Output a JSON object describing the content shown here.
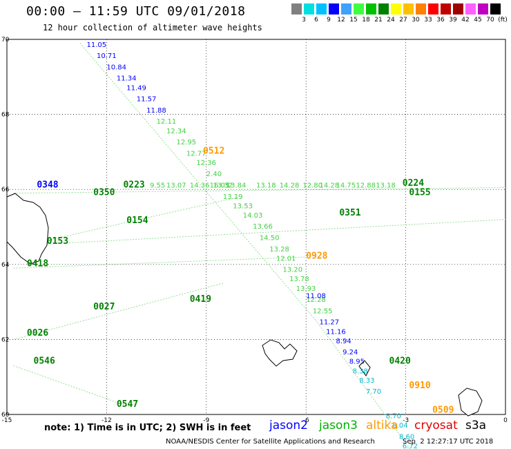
{
  "header": {
    "title": "00:00 – 11:59 UTC 09/01/2018",
    "subtitle": "12 hour collection of altimeter wave heights"
  },
  "color_scale": {
    "unit": "(ft)",
    "colors": [
      "#808080",
      "#00e0e0",
      "#00c0ff",
      "#0000ff",
      "#40a0ff",
      "#40ff40",
      "#00c000",
      "#008000",
      "#ffff00",
      "#ffc000",
      "#ff8000",
      "#ff0000",
      "#c00000",
      "#a00000",
      "#ff60ff",
      "#c000c0",
      "#000000"
    ],
    "labels": [
      "3",
      "6",
      "9",
      "12",
      "15",
      "18",
      "21",
      "24",
      "27",
      "30",
      "33",
      "36",
      "39",
      "42",
      "45",
      "70"
    ]
  },
  "axes": {
    "lon_ticks": [
      "-15",
      "-12",
      "-9",
      "-6",
      "-3",
      "0"
    ],
    "lat_ticks": [
      "70",
      "68",
      "66",
      "64",
      "62",
      "60"
    ]
  },
  "satellites": {
    "jason2": {
      "name": "jason2",
      "color": "#0000ff"
    },
    "jason3": {
      "name": "jason3",
      "color": "#00b000"
    },
    "altika": {
      "name": "altika",
      "color": "#ff9900"
    },
    "cryosat": {
      "name": "cryosat",
      "color": "#e00000"
    },
    "s3a": {
      "name": "s3a",
      "color": "#000000"
    }
  },
  "tracks": [
    {
      "sat": "jason2",
      "color": "#0000ff",
      "labels": [
        {
          "v": "11.05",
          "lon": -12.6,
          "lat": 69.8
        },
        {
          "v": "10.71",
          "lon": -12.3,
          "lat": 69.5
        },
        {
          "v": "10.84",
          "lon": -12.0,
          "lat": 69.2
        },
        {
          "v": "11.34",
          "lon": -11.7,
          "lat": 68.9
        },
        {
          "v": "11.49",
          "lon": -11.4,
          "lat": 68.65
        },
        {
          "v": "11.57",
          "lon": -11.1,
          "lat": 68.35
        },
        {
          "v": "11.88",
          "lon": -10.8,
          "lat": 68.05
        }
      ]
    },
    {
      "sat": "jason3",
      "color": "#40d040",
      "labels": [
        {
          "v": "12.11",
          "lon": -10.5,
          "lat": 67.75
        },
        {
          "v": "12.34",
          "lon": -10.2,
          "lat": 67.5
        },
        {
          "v": "12.95",
          "lon": -9.9,
          "lat": 67.2
        },
        {
          "v": "12.77",
          "lon": -9.6,
          "lat": 66.9
        },
        {
          "v": "12.36",
          "lon": -9.3,
          "lat": 66.65
        },
        {
          "v": "2.40",
          "lon": -9.0,
          "lat": 66.35
        },
        {
          "v": "13.32",
          "lon": -8.8,
          "lat": 66.05
        },
        {
          "v": "13.19",
          "lon": -8.5,
          "lat": 65.75
        },
        {
          "v": "13.53",
          "lon": -8.2,
          "lat": 65.5
        },
        {
          "v": "14.03",
          "lon": -7.9,
          "lat": 65.25
        },
        {
          "v": "13.66",
          "lon": -7.6,
          "lat": 64.95
        },
        {
          "v": "14.50",
          "lon": -7.4,
          "lat": 64.65
        },
        {
          "v": "13.28",
          "lon": -7.1,
          "lat": 64.35
        },
        {
          "v": "12.01",
          "lon": -6.9,
          "lat": 64.1
        },
        {
          "v": "13.20",
          "lon": -6.7,
          "lat": 63.8
        },
        {
          "v": "13.78",
          "lon": -6.5,
          "lat": 63.55
        },
        {
          "v": "13.93",
          "lon": -6.3,
          "lat": 63.3
        },
        {
          "v": "12.28",
          "lon": -6.0,
          "lat": 63.0
        },
        {
          "v": "12.55",
          "lon": -5.8,
          "lat": 62.7
        }
      ]
    },
    {
      "sat": "jason2",
      "color": "#0000ff",
      "labels": [
        {
          "v": "11.08",
          "lon": -6.0,
          "lat": 63.1
        },
        {
          "v": "11.27",
          "lon": -5.6,
          "lat": 62.4
        },
        {
          "v": "11.16",
          "lon": -5.4,
          "lat": 62.15
        },
        {
          "v": "8.94",
          "lon": -5.1,
          "lat": 61.9
        },
        {
          "v": "9.24",
          "lon": -4.9,
          "lat": 61.6
        },
        {
          "v": "8.95",
          "lon": -4.7,
          "lat": 61.35
        }
      ]
    },
    {
      "sat": "jason2",
      "color": "#00b8d0",
      "labels": [
        {
          "v": "8.38",
          "lon": -4.6,
          "lat": 61.1
        },
        {
          "v": "8.33",
          "lon": -4.4,
          "lat": 60.85
        },
        {
          "v": "7.70",
          "lon": -4.2,
          "lat": 60.55
        },
        {
          "v": "8.70",
          "lon": -3.6,
          "lat": 59.9
        },
        {
          "v": "8.04",
          "lon": -3.4,
          "lat": 59.65
        },
        {
          "v": "8.60",
          "lon": -3.2,
          "lat": 59.35
        },
        {
          "v": "6.72",
          "lon": -3.1,
          "lat": 59.1
        }
      ]
    },
    {
      "sat": "jason3",
      "color": "#40d040",
      "labels": [
        {
          "v": "9.55",
          "lon": -10.7,
          "lat": 66.05
        },
        {
          "v": "13.07",
          "lon": -10.2,
          "lat": 66.05
        },
        {
          "v": "14.36",
          "lon": -9.5,
          "lat": 66.05
        },
        {
          "v": "16.05",
          "lon": -8.9,
          "lat": 66.05
        },
        {
          "v": "13.84",
          "lon": -8.4,
          "lat": 66.05
        },
        {
          "v": "13.18",
          "lon": -7.5,
          "lat": 66.05
        },
        {
          "v": "14.28",
          "lon": -6.8,
          "lat": 66.05
        },
        {
          "v": "12.80",
          "lon": -6.1,
          "lat": 66.05
        },
        {
          "v": "14.28",
          "lon": -5.6,
          "lat": 66.05
        },
        {
          "v": "14.75",
          "lon": -5.1,
          "lat": 66.05
        },
        {
          "v": "12.88",
          "lon": -4.5,
          "lat": 66.05
        },
        {
          "v": "13.18",
          "lon": -3.9,
          "lat": 66.05
        }
      ]
    }
  ],
  "time_labels": [
    {
      "t": "0512",
      "color": "#ff9900",
      "lon": -9.1,
      "lat": 66.95
    },
    {
      "t": "0223",
      "color": "#008000",
      "lon": -11.5,
      "lat": 66.05
    },
    {
      "t": "0350",
      "color": "#008000",
      "lon": -12.4,
      "lat": 65.85
    },
    {
      "t": "0154",
      "color": "#008000",
      "lon": -11.4,
      "lat": 65.1
    },
    {
      "t": "0153",
      "color": "#008000",
      "lon": -13.8,
      "lat": 64.55
    },
    {
      "t": "0418",
      "color": "#008000",
      "lon": -14.4,
      "lat": 63.95
    },
    {
      "t": "0027",
      "color": "#008000",
      "lon": -12.4,
      "lat": 62.8
    },
    {
      "t": "0419",
      "color": "#008000",
      "lon": -9.5,
      "lat": 63.0
    },
    {
      "t": "0026",
      "color": "#008000",
      "lon": -14.4,
      "lat": 62.1
    },
    {
      "t": "0546",
      "color": "#008000",
      "lon": -14.2,
      "lat": 61.35
    },
    {
      "t": "0547",
      "color": "#008000",
      "lon": -11.7,
      "lat": 60.2
    },
    {
      "t": "0351",
      "color": "#008000",
      "lon": -5.0,
      "lat": 65.3
    },
    {
      "t": "0224",
      "color": "#008000",
      "lon": -3.1,
      "lat": 66.1
    },
    {
      "t": "0155",
      "color": "#008000",
      "lon": -2.9,
      "lat": 65.85
    },
    {
      "t": "0928",
      "color": "#ff9900",
      "lon": -6.0,
      "lat": 64.15
    },
    {
      "t": "0420",
      "color": "#008000",
      "lon": -3.5,
      "lat": 61.35
    },
    {
      "t": "0910",
      "color": "#ff9900",
      "lon": -2.9,
      "lat": 60.7
    },
    {
      "t": "0509",
      "color": "#ff9900",
      "lon": -2.2,
      "lat": 60.05
    },
    {
      "t": "0348",
      "color": "#0000ff",
      "lon": -14.1,
      "lat": 66.05
    }
  ],
  "note": "note: 1) Time is in UTC; 2) SWH is in feet",
  "footer": {
    "left": "NOAA/NESDIS Center for Satellite Applications and Research",
    "right": "Sep  2 12:27:17 UTC 2018"
  }
}
